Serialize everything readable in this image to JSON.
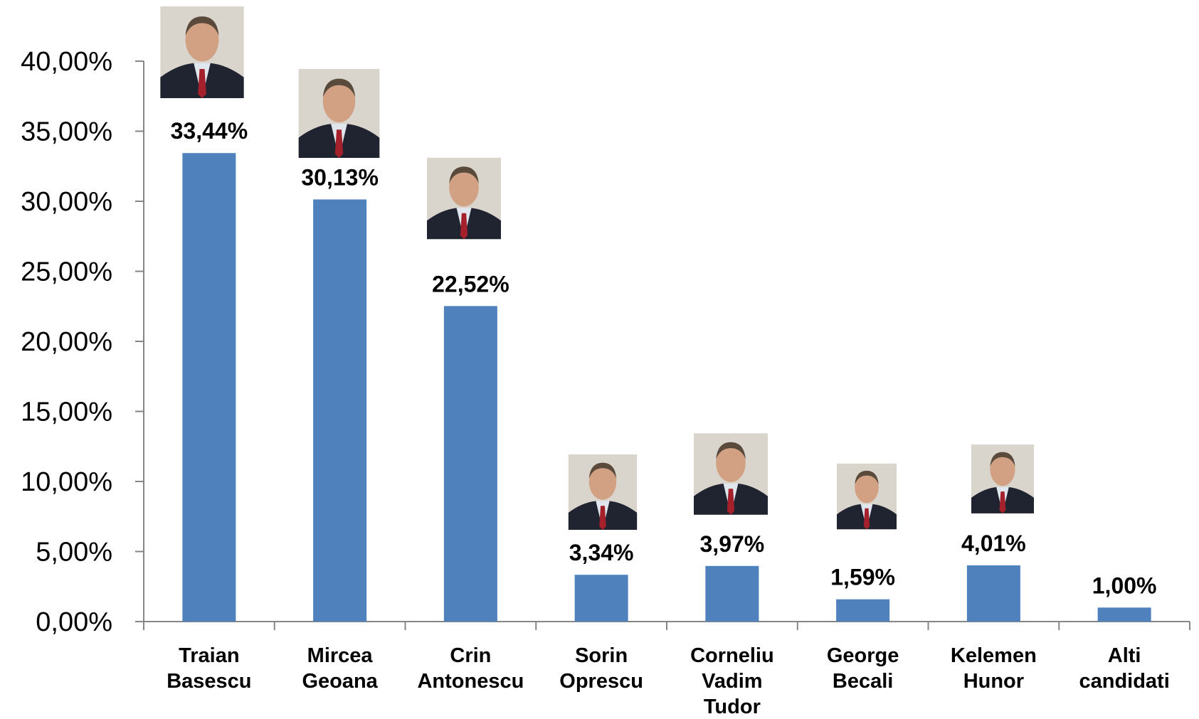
{
  "chart_data": {
    "type": "bar",
    "categories": [
      "Traian Basescu",
      "Mircea Geoana",
      "Crin Antonescu",
      "Sorin Oprescu",
      "Corneliu Vadim Tudor",
      "George Becali",
      "Kelemen Hunor",
      "Alti candidati"
    ],
    "values": [
      33.44,
      30.13,
      22.52,
      3.34,
      3.97,
      1.59,
      4.01,
      1.0
    ],
    "value_labels": [
      "33,44%",
      "30,13%",
      "22,52%",
      "3,34%",
      "3,97%",
      "1,59%",
      "4,01%",
      "1,00%"
    ],
    "color": "#4f81bd",
    "ylim": [
      0,
      40
    ],
    "yticks": [
      {
        "value": 0,
        "label": "0,00%"
      },
      {
        "value": 5,
        "label": "5,00%"
      },
      {
        "value": 10,
        "label": "10,00%"
      },
      {
        "value": 15,
        "label": "15,00%"
      },
      {
        "value": 20,
        "label": "20,00%"
      },
      {
        "value": 25,
        "label": "25,00%"
      },
      {
        "value": 30,
        "label": "30,00%"
      },
      {
        "value": 35,
        "label": "35,00%"
      },
      {
        "value": 40,
        "label": "40,00%"
      }
    ],
    "grid": false
  }
}
